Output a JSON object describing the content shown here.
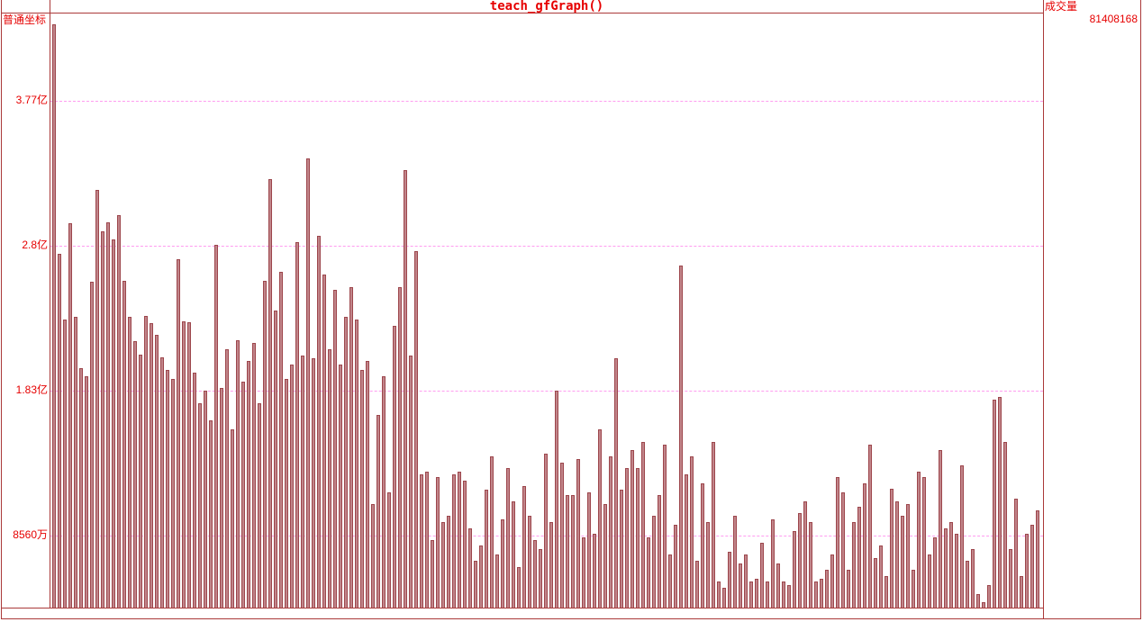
{
  "window": {
    "title": "teach_gfGraph()",
    "left_axis_mode_label": "普通坐标",
    "right_header": "成交量",
    "right_value": "81408168"
  },
  "colors": {
    "frame_red": "#aa3939",
    "label_red": "#e60000",
    "grid_pink": "#ff9cf0",
    "bar_fill": "#c1858a",
    "bar_border": "#9d464c"
  },
  "chart_data": {
    "type": "bar",
    "title": "teach_gfGraph()",
    "series_name": "成交量",
    "latest_value": 81408168,
    "ylabel": "成交量",
    "xlabel": "",
    "grid": true,
    "legend": "none",
    "ylim": [
      37300000,
      436300000
    ],
    "gridlines": [
      {
        "label": "3.77亿",
        "value": 377000000
      },
      {
        "label": "2.8亿",
        "value": 280000000
      },
      {
        "label": "1.83亿",
        "value": 183000000
      },
      {
        "label": "8560万",
        "value": 85600000
      }
    ],
    "values": [
      428400000,
      274500000,
      230500000,
      295000000,
      232300000,
      197900000,
      192400000,
      255800000,
      317400000,
      289600000,
      295700000,
      284200000,
      300500000,
      256400000,
      232300000,
      216000000,
      206900000,
      232900000,
      228000000,
      220200000,
      205100000,
      196700000,
      190600000,
      270900000,
      229300000,
      228700000,
      194900000,
      174300000,
      182800000,
      162900000,
      280600000,
      184600000,
      210500000,
      156800000,
      216600000,
      188800000,
      202700000,
      214800000,
      174300000,
      256400000,
      324600000,
      236500000,
      262500000,
      190600000,
      200300000,
      282400000,
      206300000,
      338500000,
      204500000,
      286600000,
      260600000,
      210500000,
      250400000,
      200300000,
      232300000,
      252200000,
      230500000,
      196700000,
      202700000,
      106700000,
      166500000,
      192400000,
      114600000,
      226200000,
      252200000,
      330700000,
      206300000,
      276300000,
      126600000,
      128500000,
      82600000,
      124800000,
      94700000,
      98900000,
      126600000,
      128500000,
      122400000,
      90400000,
      68700000,
      79000000,
      116400000,
      138700000,
      72900000,
      96500000,
      130900000,
      108500000,
      64500000,
      118800000,
      98900000,
      82600000,
      76500000,
      140500000,
      94700000,
      182800000,
      134500000,
      112800000,
      112800000,
      136900000,
      84400000,
      114600000,
      86800000,
      156800000,
      106700000,
      138700000,
      204500000,
      116400000,
      130900000,
      142900000,
      130900000,
      148400000,
      84400000,
      98900000,
      112800000,
      146600000,
      72900000,
      92800000,
      266700000,
      126600000,
      138700000,
      68700000,
      120600000,
      94700000,
      148400000,
      54800000,
      50600000,
      74700000,
      98900000,
      66900000,
      72900000,
      54800000,
      56600000,
      80800000,
      54800000,
      96500000,
      66900000,
      54800000,
      52400000,
      88600000,
      100700000,
      108500000,
      94700000,
      54800000,
      56600000,
      62700000,
      72900000,
      124800000,
      114600000,
      62700000,
      94700000,
      104900000,
      120600000,
      146600000,
      70500000,
      79000000,
      58400000,
      117000000,
      108500000,
      98900000,
      106700000,
      62700000,
      128500000,
      124800000,
      72900000,
      84400000,
      142900000,
      90400000,
      94700000,
      86800000,
      132700000,
      68700000,
      76500000,
      46400000,
      40900000,
      52400000,
      176700000,
      178600000,
      148400000,
      76500000,
      110300000,
      58400000,
      86800000,
      92800000,
      102500000
    ]
  }
}
